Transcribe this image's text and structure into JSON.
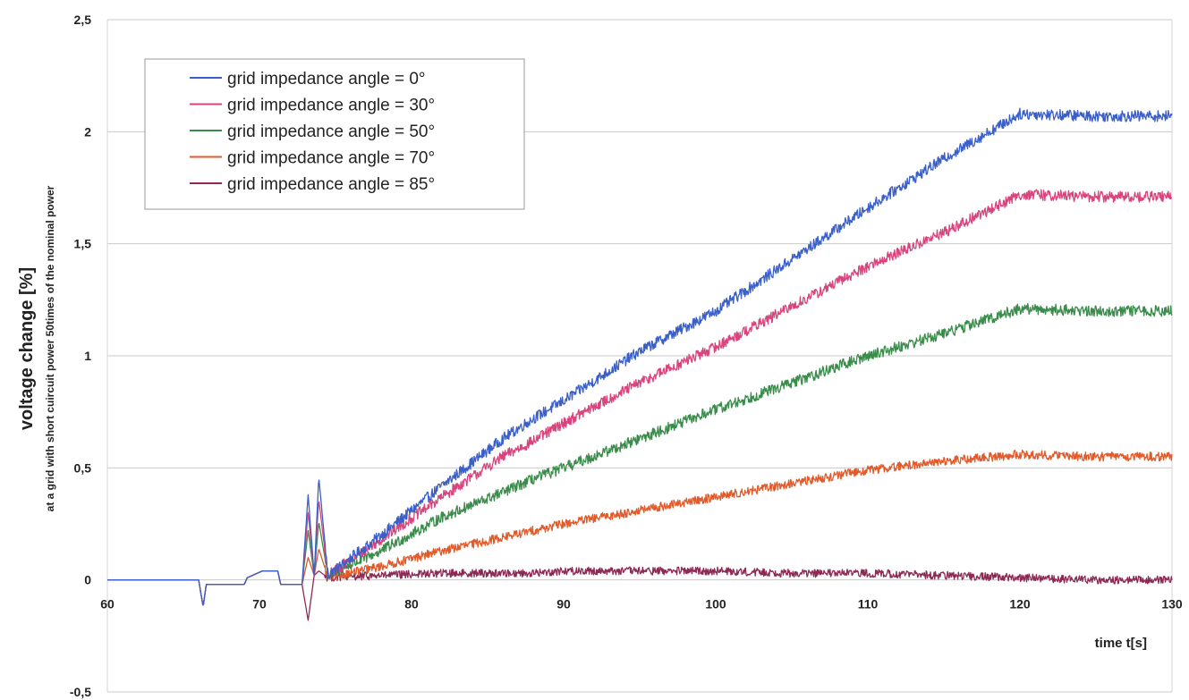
{
  "chart_data": {
    "type": "line",
    "xlabel": "time t[s]",
    "ylabel": "voltage change  [%]",
    "ylabel_sub": "at a grid with short cuircuit power 50times of the nominal power",
    "xlim": [
      60,
      130
    ],
    "ylim": [
      -0.5,
      2.5
    ],
    "xticks": [
      60,
      70,
      80,
      90,
      100,
      110,
      120,
      130
    ],
    "yticks": [
      -0.5,
      0,
      0.5,
      1,
      1.5,
      2,
      2.5
    ],
    "ytick_labels": [
      "-0,5",
      "0",
      "0,5",
      "1",
      "1,5",
      "2",
      "2,5"
    ],
    "grid": "horizontal",
    "legend_position": "top-left",
    "series": [
      {
        "name": "grid impedance angle = 0°",
        "color": "#3a5fc8",
        "noise": 0.025,
        "x": [
          60,
          66,
          66.3,
          66.5,
          69,
          69.2,
          70.2,
          71.2,
          71.4,
          72.8,
          73.2,
          73.6,
          73.9,
          74.5,
          78,
          82,
          86,
          88,
          90,
          95,
          100,
          105,
          110,
          115,
          120,
          125,
          130
        ],
        "y": [
          0,
          0,
          -0.12,
          -0.02,
          -0.02,
          0.01,
          0.04,
          0.04,
          -0.02,
          -0.02,
          0.38,
          0.02,
          0.46,
          0.02,
          0.2,
          0.42,
          0.63,
          0.72,
          0.8,
          1.02,
          1.2,
          1.43,
          1.66,
          1.88,
          2.08,
          2.07,
          2.07
        ]
      },
      {
        "name": "grid impedance angle = 30°",
        "color": "#d8457e",
        "noise": 0.025,
        "x": [
          60,
          66,
          66.3,
          66.5,
          69,
          69.2,
          70.2,
          71.2,
          71.4,
          72.8,
          73.2,
          73.6,
          73.9,
          74.5,
          78,
          82,
          86,
          88,
          90,
          95,
          100,
          105,
          110,
          115,
          120,
          125,
          130
        ],
        "y": [
          0,
          0,
          -0.12,
          -0.02,
          -0.02,
          0.01,
          0.04,
          0.04,
          -0.02,
          -0.02,
          0.3,
          0.02,
          0.36,
          0.02,
          0.18,
          0.37,
          0.55,
          0.62,
          0.7,
          0.88,
          1.04,
          1.22,
          1.4,
          1.55,
          1.72,
          1.71,
          1.71
        ]
      },
      {
        "name": "grid impedance angle = 50°",
        "color": "#3a8c4a",
        "noise": 0.025,
        "x": [
          60,
          66,
          66.3,
          66.5,
          69,
          69.2,
          70.2,
          71.2,
          71.4,
          72.8,
          73.2,
          73.6,
          73.9,
          74.5,
          78,
          82,
          86,
          88,
          90,
          95,
          100,
          105,
          110,
          115,
          120,
          125,
          130
        ],
        "y": [
          0,
          0,
          -0.12,
          -0.02,
          -0.02,
          0.01,
          0.04,
          0.04,
          -0.02,
          -0.02,
          0.22,
          0.02,
          0.26,
          0.02,
          0.13,
          0.28,
          0.39,
          0.45,
          0.5,
          0.63,
          0.76,
          0.88,
          1.0,
          1.1,
          1.21,
          1.2,
          1.2
        ]
      },
      {
        "name": "grid impedance angle = 70°",
        "color": "#e05a2a",
        "noise": 0.02,
        "x": [
          60,
          66,
          66.3,
          66.5,
          69,
          69.2,
          70.2,
          71.2,
          71.4,
          72.8,
          73.2,
          73.6,
          73.9,
          74.5,
          78,
          82,
          86,
          88,
          90,
          95,
          100,
          105,
          110,
          115,
          120,
          125,
          130
        ],
        "y": [
          0,
          0,
          -0.12,
          -0.02,
          -0.02,
          0.01,
          0.04,
          0.04,
          -0.02,
          -0.02,
          0.1,
          0.02,
          0.14,
          0.01,
          0.06,
          0.13,
          0.19,
          0.22,
          0.25,
          0.31,
          0.37,
          0.43,
          0.49,
          0.53,
          0.56,
          0.55,
          0.55
        ]
      },
      {
        "name": "grid impedance angle = 85°",
        "color": "#8c2a55",
        "noise": 0.018,
        "x": [
          60,
          66,
          66.3,
          66.5,
          69,
          69.2,
          70.2,
          71.2,
          71.4,
          72.8,
          73.2,
          73.6,
          73.9,
          74.5,
          78,
          82,
          86,
          88,
          90,
          95,
          100,
          105,
          110,
          115,
          120,
          125,
          130
        ],
        "y": [
          0,
          0,
          -0.12,
          -0.02,
          -0.02,
          0.01,
          0.04,
          0.04,
          -0.02,
          -0.02,
          -0.18,
          0.02,
          0.04,
          0.01,
          0.02,
          0.03,
          0.03,
          0.03,
          0.04,
          0.04,
          0.04,
          0.03,
          0.03,
          0.02,
          0.01,
          0.0,
          0.0
        ]
      }
    ]
  }
}
